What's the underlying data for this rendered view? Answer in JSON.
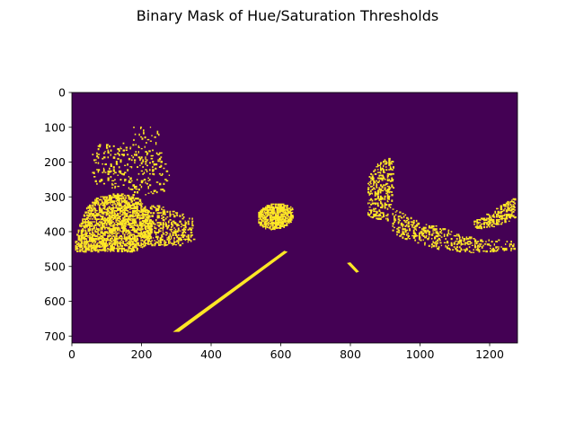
{
  "chart_data": {
    "type": "heatmap",
    "title": "Binary Mask of Hue/Saturation Thresholds",
    "xlabel": "",
    "ylabel": "",
    "image_width": 1280,
    "image_height": 720,
    "xlim": [
      0,
      1280
    ],
    "ylim": [
      720,
      0
    ],
    "x_ticks": [
      0,
      200,
      400,
      600,
      800,
      1000,
      1200
    ],
    "x_tick_labels": [
      "0",
      "200",
      "400",
      "600",
      "800",
      "1000",
      "1200"
    ],
    "y_ticks": [
      0,
      100,
      200,
      300,
      400,
      500,
      600,
      700
    ],
    "y_tick_labels": [
      "0",
      "100",
      "200",
      "300",
      "400",
      "500",
      "600",
      "700"
    ],
    "grid": false,
    "legend": "none",
    "colormap": "viridis",
    "mask_values": [
      0,
      1
    ],
    "colors": {
      "off": "#440154",
      "on": "#fde725",
      "axis": "#000000",
      "background": "#ffffff"
    },
    "regions": [
      {
        "name": "left-vegetation",
        "points": [
          [
            5,
            430
          ],
          [
            20,
            380
          ],
          [
            40,
            330
          ],
          [
            70,
            300
          ],
          [
            110,
            290
          ],
          [
            150,
            290
          ],
          [
            190,
            300
          ],
          [
            215,
            330
          ],
          [
            230,
            380
          ],
          [
            225,
            430
          ],
          [
            180,
            455
          ],
          [
            120,
            455
          ],
          [
            60,
            455
          ],
          [
            10,
            455
          ]
        ],
        "density": 0.62
      },
      {
        "name": "left-upper-trees",
        "points": [
          [
            60,
            150
          ],
          [
            130,
            140
          ],
          [
            200,
            150
          ],
          [
            260,
            170
          ],
          [
            280,
            230
          ],
          [
            270,
            280
          ],
          [
            220,
            300
          ],
          [
            160,
            290
          ],
          [
            110,
            280
          ],
          [
            70,
            260
          ],
          [
            50,
            220
          ]
        ],
        "density": 0.12
      },
      {
        "name": "left-treetops",
        "points": [
          [
            160,
            100
          ],
          [
            230,
            90
          ],
          [
            260,
            120
          ],
          [
            250,
            170
          ],
          [
            200,
            180
          ],
          [
            170,
            160
          ]
        ],
        "density": 0.05
      },
      {
        "name": "middle-bushes",
        "points": [
          [
            200,
            330
          ],
          [
            240,
            320
          ],
          [
            300,
            340
          ],
          [
            345,
            360
          ],
          [
            350,
            425
          ],
          [
            300,
            440
          ],
          [
            240,
            440
          ],
          [
            205,
            430
          ]
        ],
        "density": 0.35
      },
      {
        "name": "yellow-bush",
        "points": [
          [
            535,
            340
          ],
          [
            560,
            320
          ],
          [
            600,
            315
          ],
          [
            635,
            330
          ],
          [
            630,
            370
          ],
          [
            600,
            390
          ],
          [
            560,
            392
          ],
          [
            535,
            378
          ]
        ],
        "density": 0.82
      },
      {
        "name": "right-trees",
        "points": [
          [
            850,
            240
          ],
          [
            880,
            200
          ],
          [
            920,
            180
          ],
          [
            925,
            240
          ],
          [
            920,
            300
          ],
          [
            905,
            365
          ],
          [
            850,
            360
          ],
          [
            845,
            300
          ]
        ],
        "density": 0.35
      },
      {
        "name": "right-vehicles",
        "points": [
          [
            920,
            330
          ],
          [
            1000,
            370
          ],
          [
            1060,
            385
          ],
          [
            1120,
            410
          ],
          [
            1200,
            420
          ],
          [
            1270,
            420
          ],
          [
            1270,
            450
          ],
          [
            1150,
            460
          ],
          [
            1050,
            450
          ],
          [
            960,
            420
          ],
          [
            920,
            400
          ]
        ],
        "density": 0.28
      },
      {
        "name": "right-roadside",
        "points": [
          [
            1150,
            370
          ],
          [
            1220,
            330
          ],
          [
            1270,
            300
          ],
          [
            1275,
            360
          ],
          [
            1210,
            385
          ],
          [
            1160,
            390
          ]
        ],
        "density": 0.5
      }
    ],
    "lane_lines": [
      {
        "name": "left-lane-line",
        "points": [
          [
            290,
            688
          ],
          [
            308,
            688
          ],
          [
            620,
            458
          ],
          [
            610,
            455
          ]
        ]
      },
      {
        "name": "right-lane-fragment",
        "points": [
          [
            790,
            490
          ],
          [
            800,
            488
          ],
          [
            825,
            515
          ],
          [
            817,
            518
          ]
        ]
      }
    ]
  }
}
